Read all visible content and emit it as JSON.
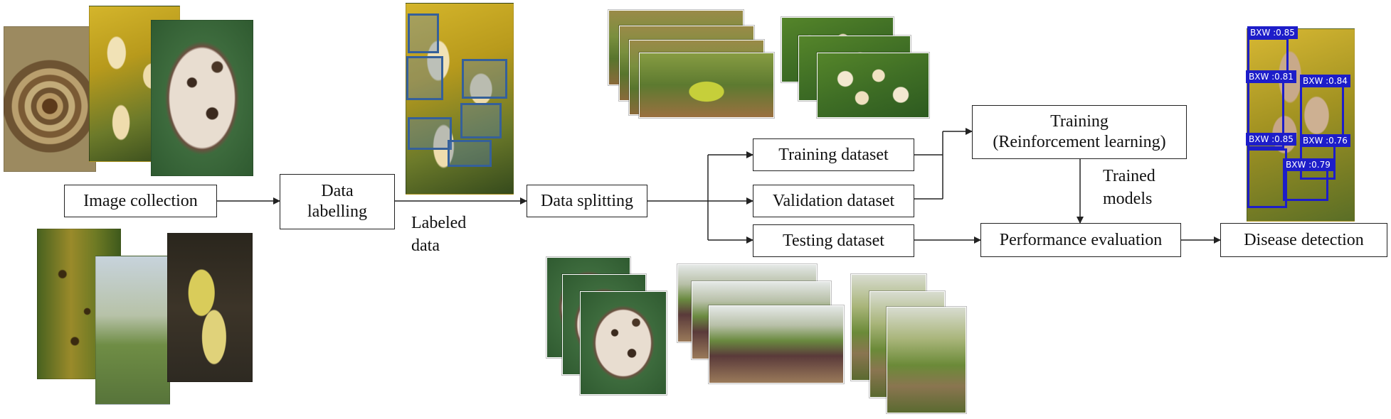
{
  "boxes": {
    "image_collection": "Image collection",
    "data_labelling_line1": "Data",
    "data_labelling_line2": "labelling",
    "data_splitting": "Data splitting",
    "training_dataset": "Training dataset",
    "validation_dataset": "Validation dataset",
    "testing_dataset": "Testing dataset",
    "training_line1": "Training",
    "training_line2": "(Reinforcement learning)",
    "performance_evaluation": "Performance evaluation",
    "disease_detection": "Disease detection"
  },
  "labels": {
    "labeled_line1": "Labeled",
    "labeled_line2": "data",
    "trained_line1": "Trained",
    "trained_line2": "models"
  },
  "detections": [
    {
      "tag": "BXW :0.85"
    },
    {
      "tag": "BXW :0.81"
    },
    {
      "tag": "BXW :0.84"
    },
    {
      "tag": "BXW :0.76"
    },
    {
      "tag": "BXW :0.85"
    },
    {
      "tag": "BXW :0.79"
    }
  ],
  "colors": {
    "detection_box": "#1d1dc9",
    "label_box": "#35609a",
    "line": "#222222"
  }
}
